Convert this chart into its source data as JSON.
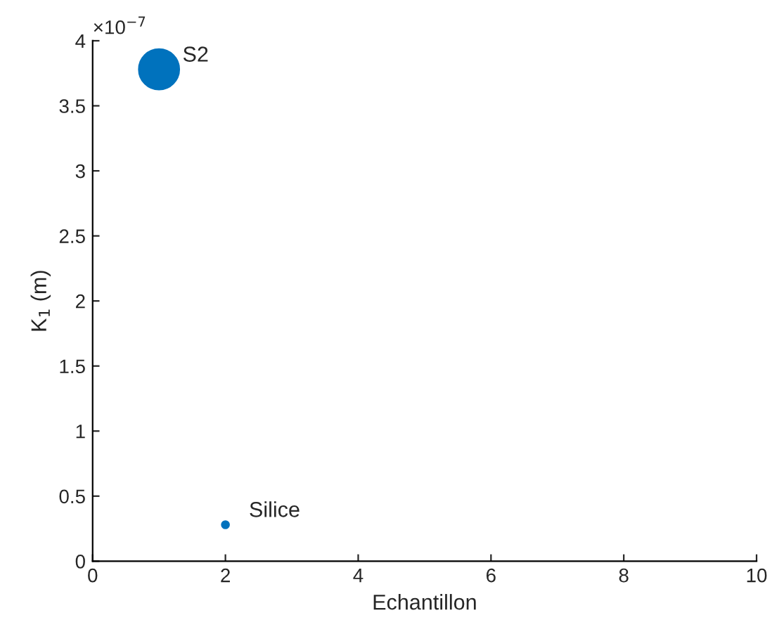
{
  "chart_data": {
    "type": "bubble",
    "xlabel": "Echantillon",
    "ylabel": "K$_{1}$ (m)",
    "x": [
      1,
      2
    ],
    "values": [
      3.78,
      0.28
    ],
    "sizes": [
      1,
      0.03
    ],
    "color": "#0072bd",
    "xlim": [
      0,
      10
    ],
    "xticks": [
      0,
      2,
      4,
      6,
      8,
      10
    ],
    "ylim": [
      0,
      4
    ],
    "yticks": [
      0,
      0.5,
      1,
      1.5,
      2,
      2.5,
      3,
      3.5,
      4
    ],
    "annotations": [
      {
        "text": "S2",
        "x": 1,
        "y": 3.78
      },
      {
        "text": "Silice",
        "x": 2,
        "y": 0.28
      },
      "×10$^{−7}$"
    ],
    "grid": false,
    "legend": false
  }
}
